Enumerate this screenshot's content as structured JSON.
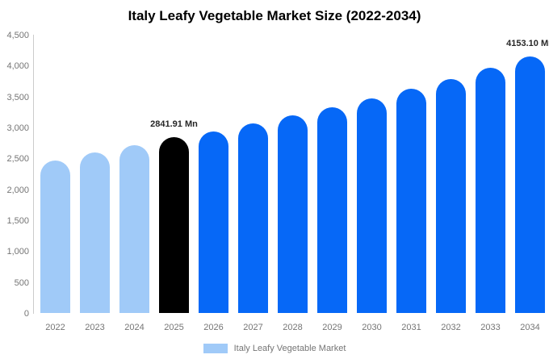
{
  "page": {
    "title": "Italy Leafy Vegetable Market Size (2022-2034)"
  },
  "legend": {
    "label": "Italy Leafy Vegetable Market",
    "swatch_color": "#A0CAF8"
  },
  "annotations": [
    {
      "year": "2025",
      "text": "2841.91 Mn"
    },
    {
      "year": "2034",
      "text": "4153.10 Mn"
    }
  ],
  "colors": {
    "past_bar": "#A0CAF8",
    "highlight_bar": "#000000",
    "forecast_bar": "#0668F7",
    "axis_line": "#CCCCCC",
    "tick_text": "#757575",
    "annotation_text": "#262626",
    "title_text": "#000000",
    "background": "#FFFFFF"
  },
  "chart_data": {
    "type": "bar",
    "title": "Italy Leafy Vegetable Market Size (2022-2034)",
    "xlabel": "",
    "ylabel": "",
    "series_name": "Italy Leafy Vegetable Market",
    "unit": "Mn",
    "categories": [
      "2022",
      "2023",
      "2024",
      "2025",
      "2026",
      "2027",
      "2028",
      "2029",
      "2030",
      "2031",
      "2032",
      "2033",
      "2034"
    ],
    "values": [
      2470,
      2590,
      2710,
      2841.91,
      2940,
      3060,
      3190,
      3330,
      3470,
      3620,
      3780,
      3960,
      4153.1
    ],
    "bar_roles": [
      "past",
      "past",
      "past",
      "highlight",
      "forecast",
      "forecast",
      "forecast",
      "forecast",
      "forecast",
      "forecast",
      "forecast",
      "forecast",
      "forecast"
    ],
    "labeled_points": [
      {
        "category": "2025",
        "value": 2841.91,
        "label": "2841.91 Mn"
      },
      {
        "category": "2034",
        "value": 4153.1,
        "label": "4153.10 Mn"
      }
    ],
    "ylim": [
      0,
      4500
    ],
    "yticks": [
      0,
      500,
      1000,
      1500,
      2000,
      2500,
      3000,
      3500,
      4000,
      4500
    ],
    "ytick_labels": [
      "0",
      "500",
      "1,000",
      "1,500",
      "2,000",
      "2,500",
      "3,000",
      "3,500",
      "4,000",
      "4,500"
    ],
    "grid": false,
    "legend_position": "bottom"
  }
}
